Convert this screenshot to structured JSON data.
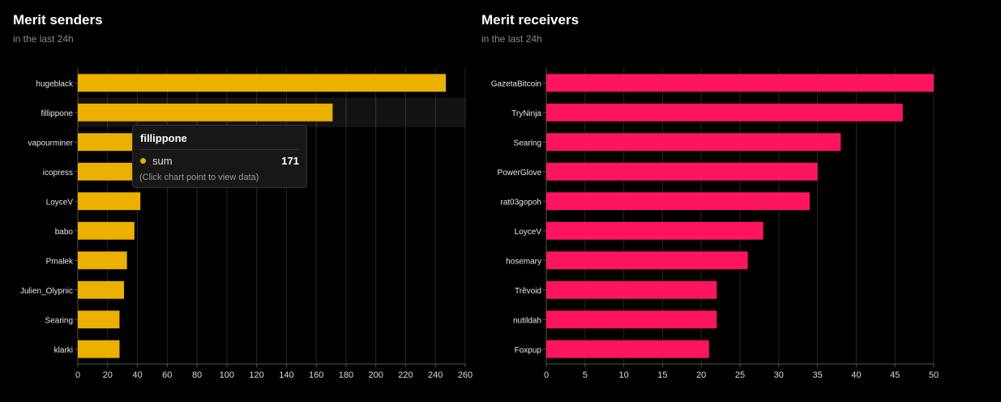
{
  "chart_data": [
    {
      "type": "bar",
      "orientation": "horizontal",
      "title": "Merit senders",
      "subtitle": "in the last 24h",
      "categories": [
        "hugeblack",
        "fillippone",
        "vapourminer",
        "icopress",
        "LoyceV",
        "babo",
        "Pmalek",
        "Julien_Olypnic",
        "Searing",
        "klarki"
      ],
      "series": [
        {
          "name": "sum",
          "values": [
            247,
            171,
            40,
            38,
            42,
            38,
            33,
            31,
            28,
            28
          ]
        }
      ],
      "xlim": [
        0,
        260
      ],
      "xticks": [
        0,
        20,
        40,
        60,
        80,
        100,
        120,
        140,
        160,
        180,
        200,
        220,
        240,
        260
      ],
      "grid": true,
      "color": "#EBB000",
      "highlighted_category": "fillippone"
    },
    {
      "type": "bar",
      "orientation": "horizontal",
      "title": "Merit receivers",
      "subtitle": "in the last 24h",
      "categories": [
        "GazetaBitcoin",
        "TryNinja",
        "Searing",
        "PowerGlove",
        "rat03gopoh",
        "LoyceV",
        "hosemary",
        "Trêvoid",
        "nutildah",
        "Foxpup"
      ],
      "series": [
        {
          "values": [
            50,
            46,
            38,
            35,
            34,
            28,
            26,
            22,
            22,
            21
          ]
        }
      ],
      "xlim": [
        0,
        50
      ],
      "xticks": [
        0,
        5,
        10,
        15,
        20,
        25,
        30,
        35,
        40,
        45,
        50
      ],
      "grid": true,
      "color": "#FF1460"
    }
  ],
  "tooltip": {
    "title": "fillippone",
    "series": "sum",
    "value": "171",
    "hint": "(Click chart point to view data)",
    "dot_color": "#EBB000"
  }
}
